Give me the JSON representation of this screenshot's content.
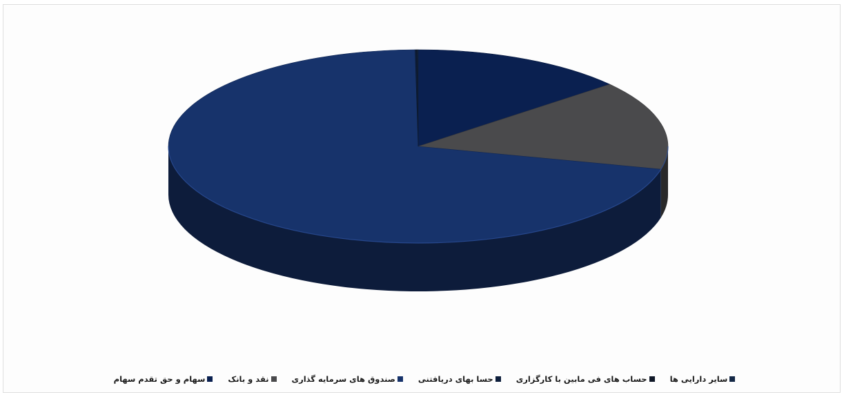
{
  "chart_data": {
    "type": "pie",
    "style": "3d",
    "title": "",
    "categories": [
      "سهام و حق تقدم سهام",
      "نقد و بانک",
      "صندوق های سرمایه گذاری",
      "حسا بهای دریافتنی",
      "حساب های فی مابین با کارگزاری",
      "سایر دارایی ها"
    ],
    "values": [
      13.9,
      14.9,
      71.0,
      0.1,
      0.05,
      0.05
    ],
    "colors": [
      "#0a2050",
      "#4a4a4c",
      "#17336b",
      "#0e1f3c",
      "#101828",
      "#142846"
    ],
    "legend": {
      "position": "bottom"
    }
  }
}
